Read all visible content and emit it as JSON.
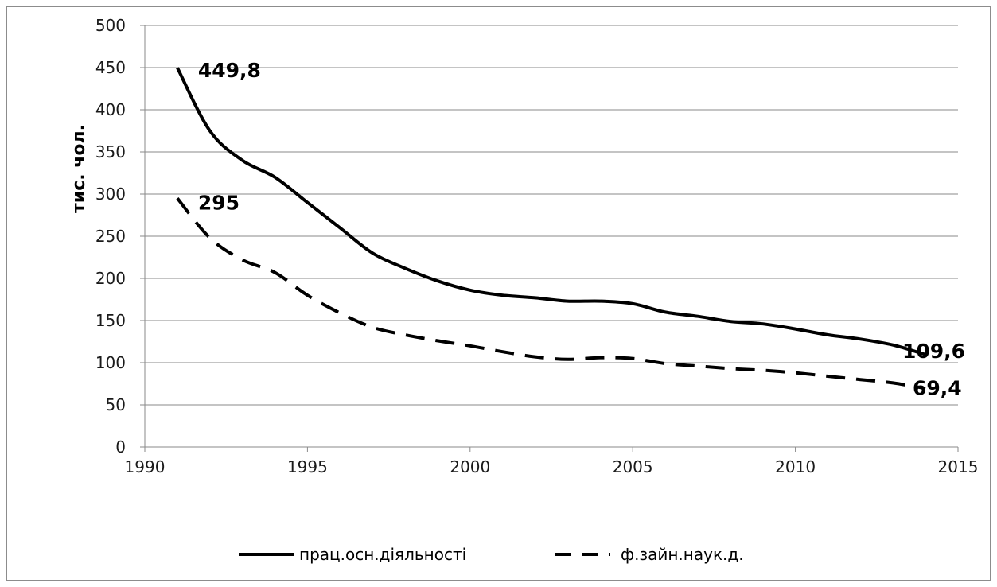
{
  "chart_data": {
    "type": "line",
    "title": "",
    "xlabel": "",
    "ylabel": "тис. чол.",
    "xlim": [
      1990,
      2015
    ],
    "ylim": [
      0,
      500
    ],
    "x_ticks": [
      1990,
      1995,
      2000,
      2005,
      2010,
      2015
    ],
    "y_ticks": [
      0,
      50,
      100,
      150,
      200,
      250,
      300,
      350,
      400,
      450,
      500
    ],
    "grid": "horizontal",
    "legend_position": "bottom",
    "series": [
      {
        "name": "прац.осн.діяльності",
        "style": "solid",
        "color": "#000000",
        "x": [
          1991,
          1992,
          1993,
          1994,
          1995,
          1996,
          1997,
          1998,
          1999,
          2000,
          2001,
          2002,
          2003,
          2004,
          2005,
          2006,
          2007,
          2008,
          2009,
          2010,
          2011,
          2012,
          2013,
          2014
        ],
        "values": [
          449.8,
          375,
          340,
          320,
          290,
          260,
          230,
          212,
          197,
          186,
          180,
          177,
          173,
          173,
          170,
          160,
          155,
          149,
          146,
          140,
          133,
          128,
          121,
          109.6
        ]
      },
      {
        "name": "ф.зайн.наук.д.",
        "style": "dashed",
        "color": "#000000",
        "x": [
          1991,
          1992,
          1993,
          1994,
          1995,
          1996,
          1997,
          1998,
          1999,
          2000,
          2001,
          2002,
          2003,
          2004,
          2005,
          2006,
          2007,
          2008,
          2009,
          2010,
          2011,
          2012,
          2013,
          2014
        ],
        "values": [
          295,
          248,
          222,
          207,
          180,
          159,
          142,
          133,
          126,
          120,
          113,
          107,
          104,
          106,
          105,
          99,
          96,
          93,
          91,
          88,
          84,
          80,
          76,
          69.4
        ]
      }
    ],
    "annotations": [
      {
        "series": 0,
        "point": 0,
        "text": "449,8"
      },
      {
        "series": 0,
        "point": 23,
        "text": "109,6"
      },
      {
        "series": 1,
        "point": 0,
        "text": "295"
      },
      {
        "series": 1,
        "point": 23,
        "text": "69,4"
      }
    ]
  }
}
